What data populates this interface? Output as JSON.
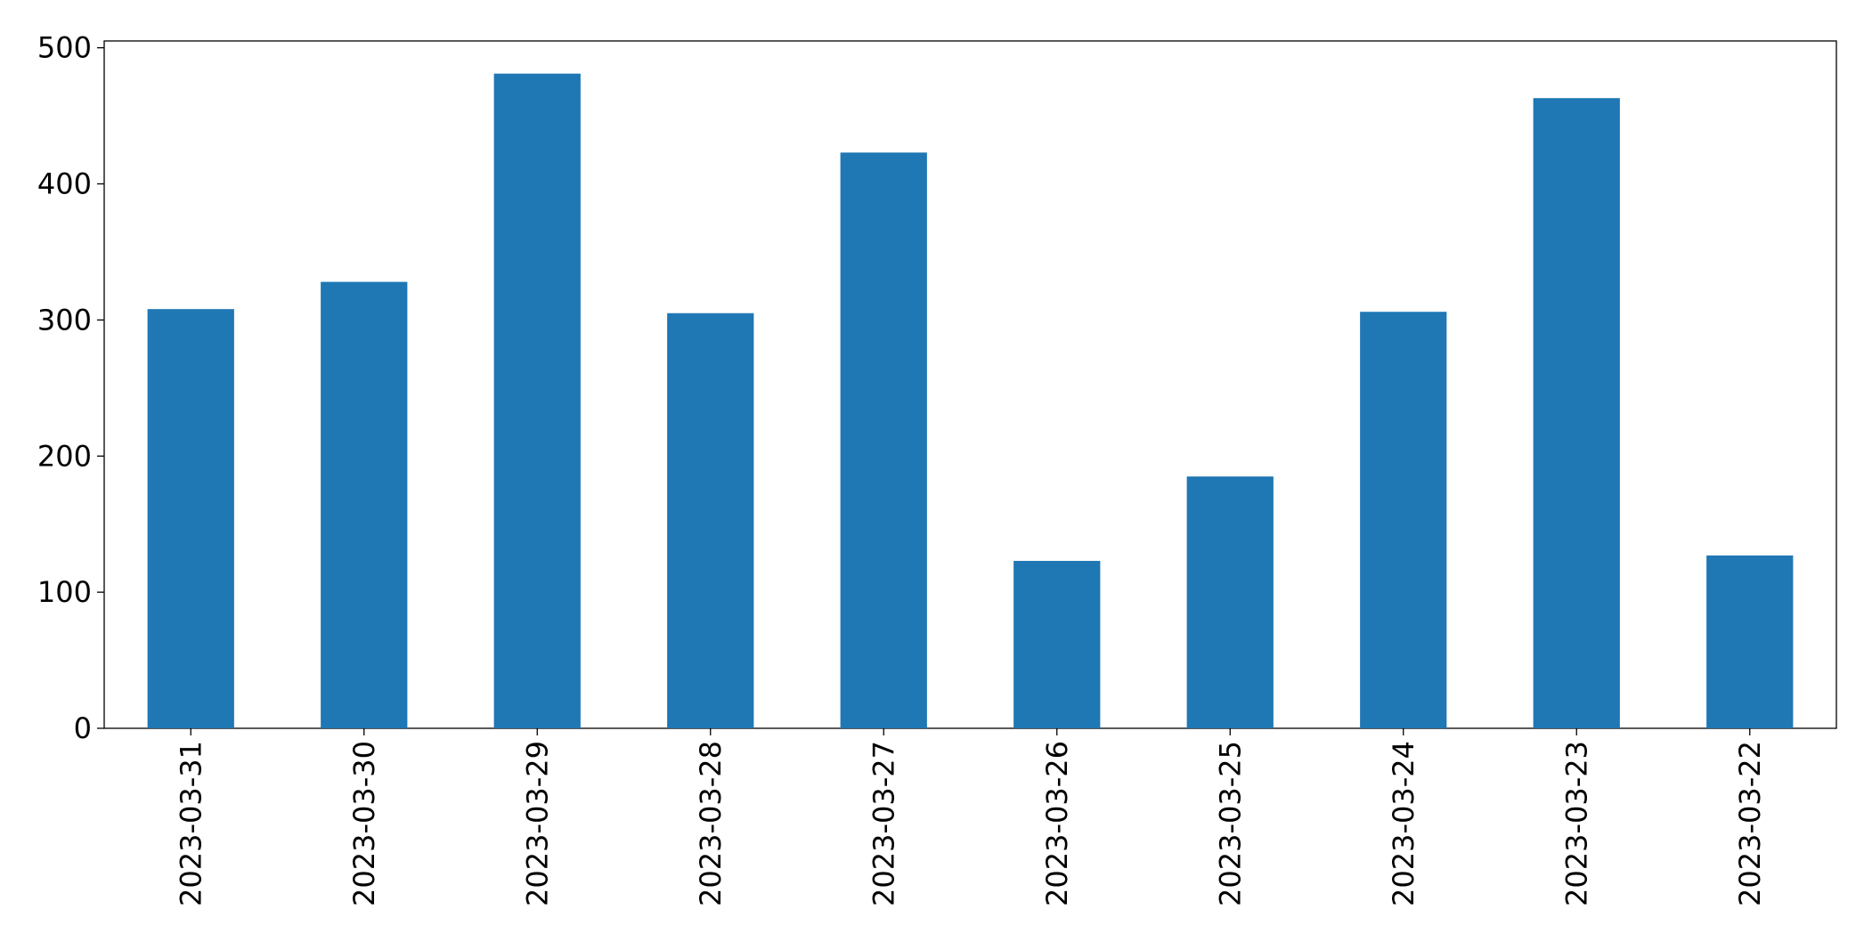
{
  "chart_data": {
    "type": "bar",
    "categories": [
      "2023-03-31",
      "2023-03-30",
      "2023-03-29",
      "2023-03-28",
      "2023-03-27",
      "2023-03-26",
      "2023-03-25",
      "2023-03-24",
      "2023-03-23",
      "2023-03-22"
    ],
    "values": [
      308,
      328,
      481,
      305,
      423,
      123,
      185,
      306,
      463,
      127
    ],
    "color": "#1f77b4",
    "ylim": [
      0,
      505
    ],
    "yticks": [
      0,
      100,
      200,
      300,
      400,
      500
    ],
    "grid": false
  }
}
